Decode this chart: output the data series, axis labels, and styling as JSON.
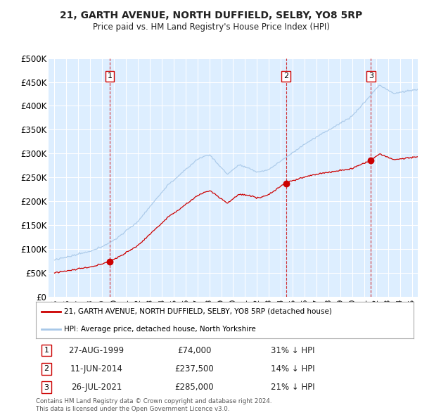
{
  "title": "21, GARTH AVENUE, NORTH DUFFIELD, SELBY, YO8 5RP",
  "subtitle": "Price paid vs. HM Land Registry's House Price Index (HPI)",
  "hpi_color": "#a8c8e8",
  "price_color": "#cc0000",
  "vline_color": "#cc0000",
  "background_color": "#ffffff",
  "plot_bg_color": "#ddeeff",
  "grid_color": "#ffffff",
  "ylim": [
    0,
    500000
  ],
  "yticks": [
    0,
    50000,
    100000,
    150000,
    200000,
    250000,
    300000,
    350000,
    400000,
    450000,
    500000
  ],
  "sale_dates_num": [
    1999.65,
    2014.44,
    2021.57
  ],
  "sale_prices": [
    74000,
    237500,
    285000
  ],
  "sale_labels": [
    "1",
    "2",
    "3"
  ],
  "sale_info": [
    {
      "num": "1",
      "date": "27-AUG-1999",
      "price": "£74,000",
      "pct": "31% ↓ HPI"
    },
    {
      "num": "2",
      "date": "11-JUN-2014",
      "price": "£237,500",
      "pct": "14% ↓ HPI"
    },
    {
      "num": "3",
      "date": "26-JUL-2021",
      "price": "£285,000",
      "pct": "21% ↓ HPI"
    }
  ],
  "legend_house_label": "21, GARTH AVENUE, NORTH DUFFIELD, SELBY, YO8 5RP (detached house)",
  "legend_hpi_label": "HPI: Average price, detached house, North Yorkshire",
  "footer1": "Contains HM Land Registry data © Crown copyright and database right 2024.",
  "footer2": "This data is licensed under the Open Government Licence v3.0.",
  "xmin": 1994.5,
  "xmax": 2025.5
}
